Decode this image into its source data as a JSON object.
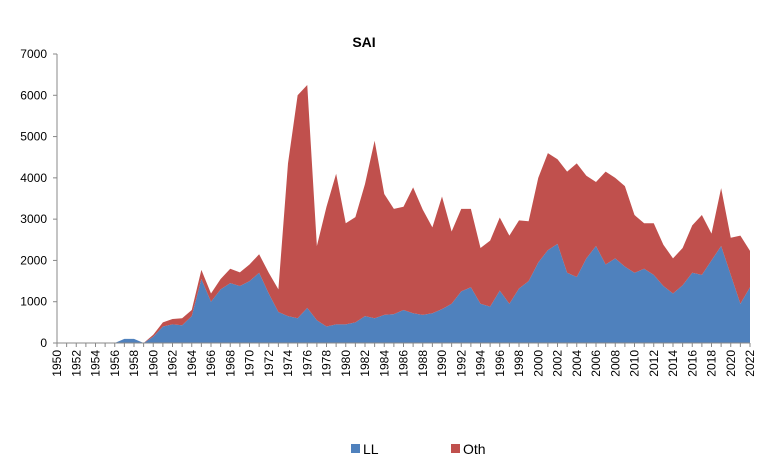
{
  "chart_data": {
    "type": "area",
    "stacked": true,
    "title": "SAI",
    "xlabel": "",
    "ylabel": "",
    "ylim": [
      0,
      7000
    ],
    "yticks": [
      "0",
      "1000",
      "2000",
      "3000",
      "4000",
      "5000",
      "6000",
      "7000"
    ],
    "x_range": [
      1950,
      2022
    ],
    "xtick_step": 2,
    "grid": false,
    "legend_position": "bottom",
    "colors": {
      "LL": "#4f81bd",
      "Oth": "#c0504d"
    },
    "x": [
      1950,
      1951,
      1952,
      1953,
      1954,
      1955,
      1956,
      1957,
      1958,
      1959,
      1960,
      1961,
      1962,
      1963,
      1964,
      1965,
      1966,
      1967,
      1968,
      1969,
      1970,
      1971,
      1972,
      1973,
      1974,
      1975,
      1976,
      1977,
      1978,
      1979,
      1980,
      1981,
      1982,
      1983,
      1984,
      1985,
      1986,
      1987,
      1988,
      1989,
      1990,
      1991,
      1992,
      1993,
      1994,
      1995,
      1996,
      1997,
      1998,
      1999,
      2000,
      2001,
      2002,
      2003,
      2004,
      2005,
      2006,
      2007,
      2008,
      2009,
      2010,
      2011,
      2012,
      2013,
      2014,
      2015,
      2016,
      2017,
      2018,
      2019,
      2020,
      2021,
      2022
    ],
    "series": [
      {
        "name": "LL",
        "values": [
          0,
          0,
          0,
          0,
          0,
          0,
          0,
          100,
          100,
          0,
          150,
          400,
          450,
          430,
          650,
          1550,
          1000,
          1300,
          1450,
          1380,
          1500,
          1700,
          1200,
          750,
          650,
          600,
          850,
          550,
          400,
          450,
          450,
          500,
          650,
          600,
          680,
          700,
          800,
          720,
          680,
          720,
          820,
          950,
          1250,
          1350,
          950,
          880,
          1270,
          950,
          1320,
          1500,
          1950,
          2250,
          2400,
          1700,
          1600,
          2050,
          2350,
          1900,
          2050,
          1850,
          1700,
          1800,
          1650,
          1380,
          1200,
          1400,
          1700,
          1650,
          2000,
          2350,
          1650,
          950,
          1350
        ]
      },
      {
        "name": "Oth",
        "values": [
          0,
          0,
          0,
          0,
          0,
          0,
          0,
          0,
          0,
          0,
          50,
          100,
          130,
          170,
          150,
          220,
          200,
          250,
          350,
          330,
          400,
          450,
          500,
          550,
          3700,
          5400,
          5400,
          1800,
          2900,
          3650,
          2450,
          2550,
          3200,
          4300,
          2930,
          2550,
          2500,
          3050,
          2550,
          2080,
          2730,
          1750,
          2000,
          1900,
          1350,
          1600,
          1770,
          1650,
          1650,
          1450,
          2050,
          2350,
          2050,
          2450,
          2750,
          2000,
          1550,
          2250,
          1950,
          1950,
          1400,
          1100,
          1250,
          1000,
          850,
          900,
          1150,
          1450,
          650,
          1400,
          900,
          1650,
          880
        ]
      }
    ]
  }
}
